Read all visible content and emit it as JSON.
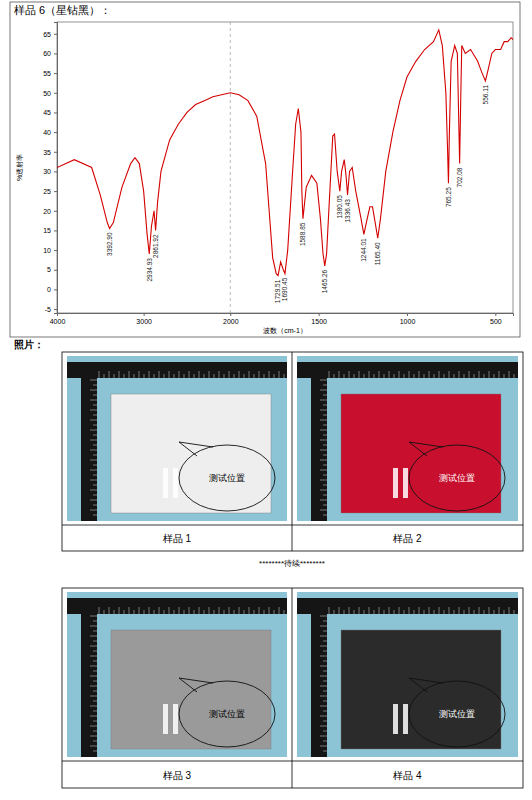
{
  "chart_data": {
    "type": "line",
    "title": "样品 6（星钻黑）：",
    "x_label": "波数（cm-1）",
    "y_label": "%透射率",
    "x": [
      4000,
      3800,
      3600,
      3500,
      3420,
      3392.9,
      3350,
      3250,
      3150,
      3100,
      3050,
      3000,
      2960,
      2934.93,
      2910,
      2880,
      2861.92,
      2840,
      2800,
      2700,
      2600,
      2500,
      2400,
      2300,
      2200,
      2100,
      2000,
      1950,
      1900,
      1850,
      1800,
      1780,
      1760,
      1740,
      1729.51,
      1715,
      1700,
      1690.45,
      1675,
      1650,
      1630,
      1615,
      1600,
      1595,
      1588.85,
      1570,
      1540,
      1510,
      1490,
      1475,
      1465.26,
      1455,
      1440,
      1420,
      1410,
      1395,
      1380.05,
      1370,
      1355,
      1345,
      1336.43,
      1325,
      1310,
      1290,
      1260,
      1244.01,
      1230,
      1210,
      1195,
      1180,
      1165.4,
      1150,
      1120,
      1080,
      1040,
      1000,
      950,
      900,
      850,
      820,
      800,
      780,
      770,
      765.25,
      760,
      750,
      730,
      715,
      708,
      702.08,
      696,
      690,
      670,
      640,
      600,
      575,
      556.11,
      540,
      520,
      500,
      470,
      450,
      430,
      410,
      400
    ],
    "series": [
      {
        "color": "#d40000",
        "values": [
          31,
          33,
          31,
          24,
          17,
          15.5,
          17,
          26,
          32,
          33.5,
          32,
          25,
          14,
          9,
          16,
          20,
          15,
          22,
          30,
          38,
          42,
          45,
          47,
          48,
          49,
          49.5,
          50,
          49.5,
          48,
          44,
          32,
          20,
          8,
          4,
          3.5,
          7,
          5,
          4,
          10,
          28,
          42,
          46,
          40,
          25,
          18,
          26,
          29,
          27,
          18,
          9,
          6,
          9,
          22,
          39,
          39.5,
          30,
          25,
          30,
          33,
          29,
          24,
          30,
          31,
          25,
          18,
          14,
          17,
          21,
          21,
          17,
          13,
          18,
          30,
          40,
          48,
          54,
          58,
          61,
          63,
          66,
          62,
          50,
          35,
          27,
          40,
          58,
          62,
          60,
          45,
          32,
          48,
          62,
          60,
          61,
          58,
          55,
          53,
          56,
          60,
          61,
          61,
          63,
          63,
          64,
          63.5
        ]
      }
    ],
    "xlim": [
      4000,
      400
    ],
    "xticks": [
      4000,
      3000,
      2000,
      1500,
      1000,
      500
    ],
    "ylim": [
      -6,
      68
    ],
    "yticks": [
      -5,
      0,
      5,
      10,
      15,
      20,
      25,
      30,
      35,
      40,
      45,
      50,
      55,
      60,
      65
    ],
    "grid": false,
    "annotations": [
      {
        "x": 3392.9,
        "y": 15.5,
        "label": "3392.90"
      },
      {
        "x": 2934.93,
        "y": 9,
        "label": "2934.93"
      },
      {
        "x": 2861.92,
        "y": 15,
        "label": "2861.92"
      },
      {
        "x": 1729.51,
        "y": 3.5,
        "label": "1729.51"
      },
      {
        "x": 1690.45,
        "y": 4,
        "label": "1690.45"
      },
      {
        "x": 1588.85,
        "y": 18,
        "label": "1588.85"
      },
      {
        "x": 1465.26,
        "y": 6,
        "label": "1465.26"
      },
      {
        "x": 1380.05,
        "y": 25,
        "label": "1380.05"
      },
      {
        "x": 1336.43,
        "y": 24,
        "label": "1336.43"
      },
      {
        "x": 1244.01,
        "y": 14,
        "label": "1244.01"
      },
      {
        "x": 1165.4,
        "y": 13,
        "label": "1165.40"
      },
      {
        "x": 765.25,
        "y": 27,
        "label": "765.25"
      },
      {
        "x": 702.08,
        "y": 32,
        "label": "702.08"
      },
      {
        "x": 556.11,
        "y": 53,
        "label": "556.11"
      }
    ]
  },
  "document": {
    "photos_heading": "照片：",
    "tables": [
      {
        "photos": [
          {
            "caption": "样品 1",
            "color": "#eeeeee",
            "callout": "测试位置"
          },
          {
            "caption": "样品 2",
            "color": "#c8102e",
            "callout": "测试位置"
          }
        ]
      },
      {
        "photos": [
          {
            "caption": "样品 3",
            "color": "#9a9a9a",
            "callout": "测试位置"
          },
          {
            "caption": "样品 4",
            "color": "#2b2b2b",
            "callout": "测试位置"
          }
        ]
      }
    ],
    "continuation": "********待续********"
  }
}
